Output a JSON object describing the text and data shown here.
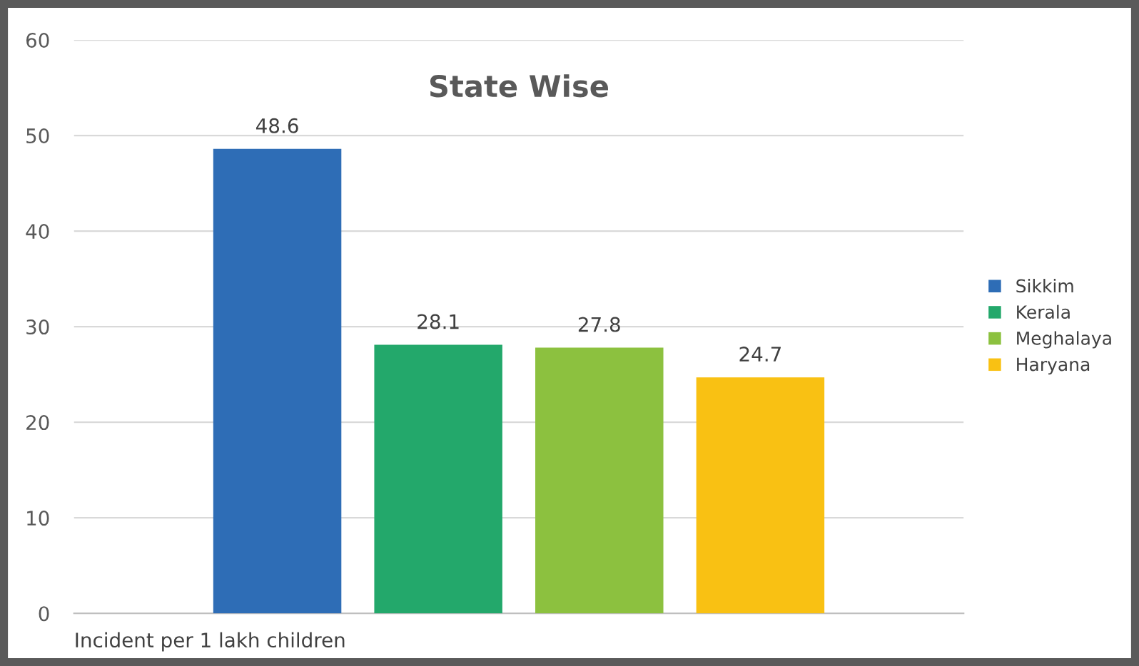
{
  "chart_data": {
    "type": "bar",
    "title": "State Wise",
    "xlabel": "Incident per 1 lakh children",
    "categories": [
      null
    ],
    "series": [
      {
        "name": "Sikkim",
        "color": "#2e6db6",
        "values": [
          48.6
        ]
      },
      {
        "name": "Kerala",
        "color": "#23a86b",
        "values": [
          28.1
        ]
      },
      {
        "name": "Meghalaya",
        "color": "#8cc13f",
        "values": [
          27.8
        ]
      },
      {
        "name": "Haryana",
        "color": "#f9c113",
        "values": [
          24.7
        ]
      }
    ],
    "ylim": [
      0,
      60
    ],
    "yticks": [
      0,
      10,
      20,
      30,
      40,
      50,
      60
    ],
    "grid": "y",
    "legend": "right",
    "data_labels": true
  }
}
